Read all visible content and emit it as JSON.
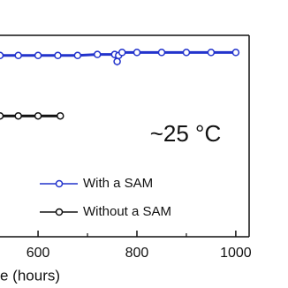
{
  "chart_data": {
    "type": "line",
    "xlabel": "e (hours)",
    "annotation": "~25 °C",
    "annotation_color": "#7dcc2b",
    "series": [
      {
        "name": "With a SAM",
        "color": "#2233cc",
        "x": [
          523,
          560,
          600,
          640,
          680,
          720,
          755,
          760,
          763,
          770,
          800,
          850,
          900,
          950,
          1000
        ],
        "values": [
          0.9,
          0.9,
          0.9,
          0.9,
          0.9,
          0.905,
          0.905,
          0.87,
          0.9,
          0.915,
          0.915,
          0.915,
          0.915,
          0.915,
          0.915
        ]
      },
      {
        "name": "Without a SAM",
        "color": "#111111",
        "x": [
          523,
          560,
          600,
          645
        ],
        "values": [
          0.6,
          0.6,
          0.6,
          0.6
        ]
      }
    ],
    "xlim": [
      523,
      1027
    ],
    "ylim": [
      0,
      1
    ],
    "xticks": [
      600,
      800,
      1000
    ],
    "xminor": [
      700,
      900
    ]
  }
}
